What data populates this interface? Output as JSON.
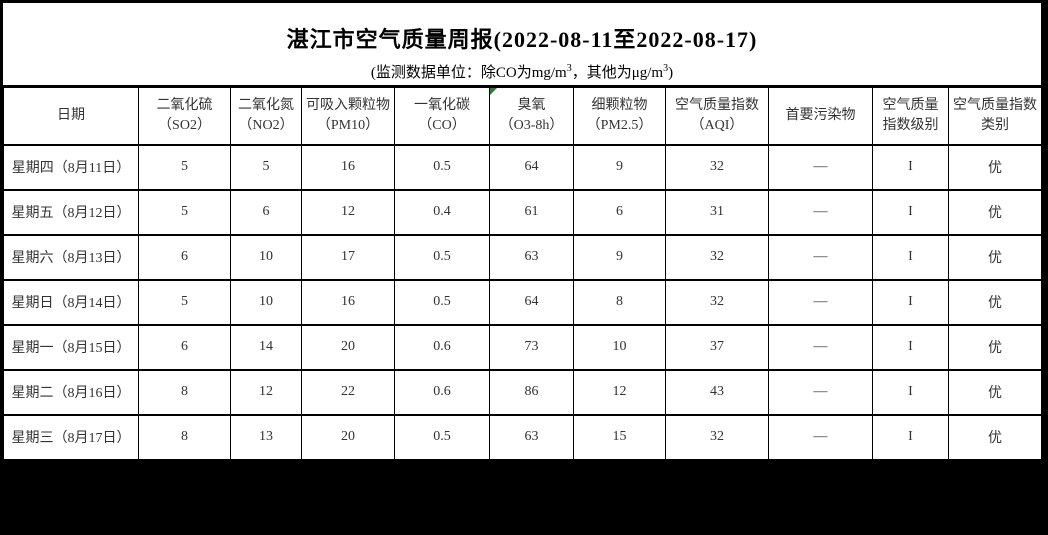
{
  "title": "湛江市空气质量周报(2022-08-11至2022-08-17)",
  "subtitle": {
    "part1": "(监测数据单位：除CO为mg/m",
    "sup1": "3",
    "part2": "，其他为μg/m",
    "sup2": "3",
    "part3": ")"
  },
  "colors": {
    "background": "#000000",
    "sheet": "#ffffff",
    "text": "#333333",
    "border": "#000000",
    "flag_green": "#2e7d32"
  },
  "table": {
    "columns": [
      {
        "id": "date",
        "lines": [
          "日期"
        ]
      },
      {
        "id": "so2",
        "lines": [
          "二氧化硫",
          "（SO2）"
        ]
      },
      {
        "id": "no2",
        "lines": [
          "二氧化氮",
          "（NO2）"
        ]
      },
      {
        "id": "pm10",
        "lines": [
          "可吸入颗粒物",
          "（PM10）"
        ]
      },
      {
        "id": "co",
        "lines": [
          "一氧化碳",
          "（CO）"
        ]
      },
      {
        "id": "o3",
        "lines": [
          "臭氧",
          "（O3-8h）"
        ],
        "flag": true
      },
      {
        "id": "pm25",
        "lines": [
          "细颗粒物",
          "（PM2.5）"
        ]
      },
      {
        "id": "aqi",
        "lines": [
          "空气质量指数",
          "（AQI）"
        ]
      },
      {
        "id": "primary",
        "lines": [
          "首要污染物"
        ]
      },
      {
        "id": "level",
        "lines": [
          "空气质量",
          "指数级别"
        ]
      },
      {
        "id": "category",
        "lines": [
          "空气质量指数",
          "类别"
        ]
      }
    ],
    "rows": [
      {
        "date": "星期四（8月11日）",
        "so2": "5",
        "no2": "5",
        "pm10": "16",
        "co": "0.5",
        "o3": "64",
        "pm25": "9",
        "aqi": "32",
        "primary": "—",
        "level": "I",
        "category": "优"
      },
      {
        "date": "星期五（8月12日）",
        "so2": "5",
        "no2": "6",
        "pm10": "12",
        "co": "0.4",
        "o3": "61",
        "pm25": "6",
        "aqi": "31",
        "primary": "—",
        "level": "I",
        "category": "优"
      },
      {
        "date": "星期六（8月13日）",
        "so2": "6",
        "no2": "10",
        "pm10": "17",
        "co": "0.5",
        "o3": "63",
        "pm25": "9",
        "aqi": "32",
        "primary": "—",
        "level": "I",
        "category": "优"
      },
      {
        "date": "星期日（8月14日）",
        "so2": "5",
        "no2": "10",
        "pm10": "16",
        "co": "0.5",
        "o3": "64",
        "pm25": "8",
        "aqi": "32",
        "primary": "—",
        "level": "I",
        "category": "优"
      },
      {
        "date": "星期一（8月15日）",
        "so2": "6",
        "no2": "14",
        "pm10": "20",
        "co": "0.6",
        "o3": "73",
        "pm25": "10",
        "aqi": "37",
        "primary": "—",
        "level": "I",
        "category": "优"
      },
      {
        "date": "星期二（8月16日）",
        "so2": "8",
        "no2": "12",
        "pm10": "22",
        "co": "0.6",
        "o3": "86",
        "pm25": "12",
        "aqi": "43",
        "primary": "—",
        "level": "I",
        "category": "优"
      },
      {
        "date": "星期三（8月17日）",
        "so2": "8",
        "no2": "13",
        "pm10": "20",
        "co": "0.5",
        "o3": "63",
        "pm25": "15",
        "aqi": "32",
        "primary": "—",
        "level": "I",
        "category": "优"
      }
    ]
  }
}
